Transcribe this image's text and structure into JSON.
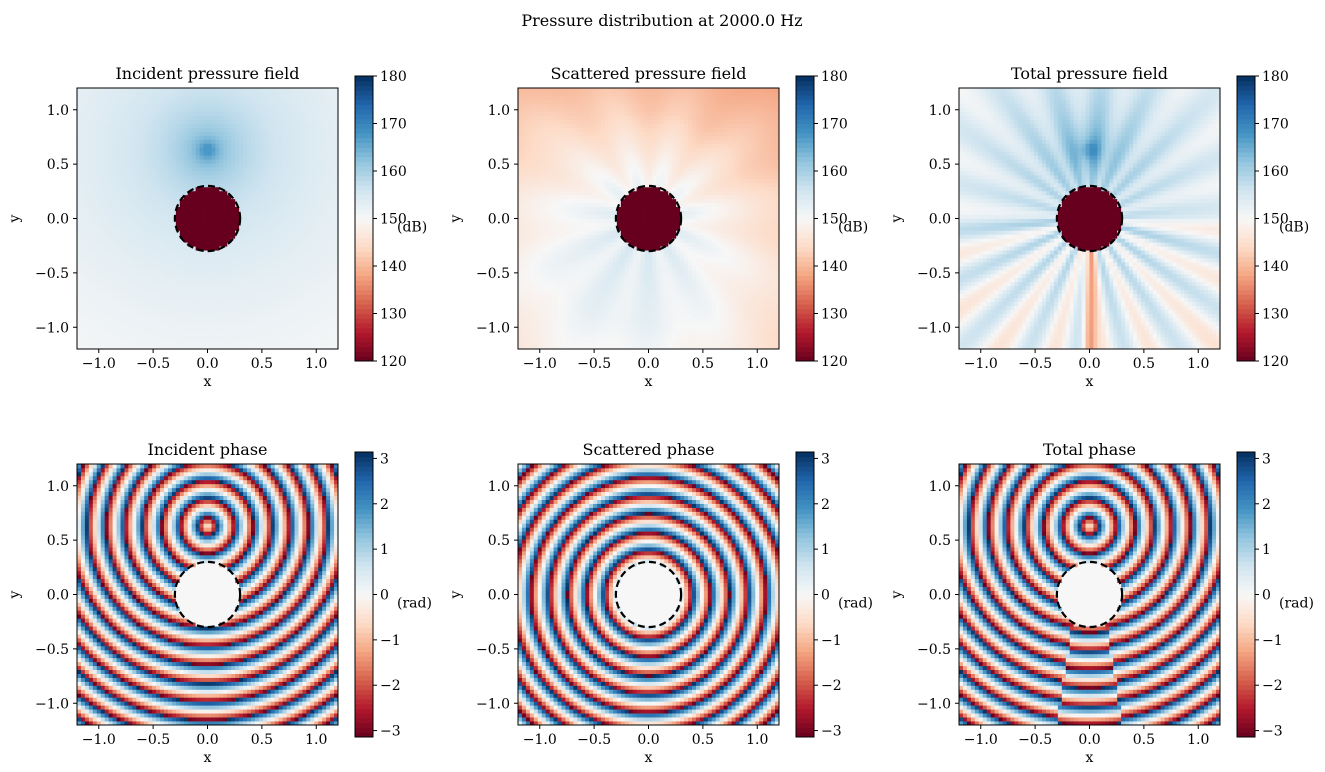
{
  "figure_title": "Pressure distribution at 2000.0 Hz",
  "colormap": {
    "name": "RdBu",
    "stops": [
      "#67001f",
      "#b2182b",
      "#d6604d",
      "#f4a582",
      "#fddbc7",
      "#f7f7f7",
      "#d1e5f0",
      "#92c5de",
      "#4393c3",
      "#2166ac",
      "#053061"
    ]
  },
  "chart_data": [
    {
      "type": "heatmap",
      "title": "Incident pressure field",
      "xlabel": "x",
      "ylabel": "y",
      "xlim": [
        -1.2,
        1.2
      ],
      "ylim": [
        -1.2,
        1.2
      ],
      "xticks": [
        "−1.0",
        "−0.5",
        "0.0",
        "0.5",
        "1.0"
      ],
      "yticks": [
        "−1.0",
        "−0.5",
        "0.0",
        "0.5",
        "1.0"
      ],
      "xtick_values": [
        -1.0,
        -0.5,
        0.0,
        0.5,
        1.0
      ],
      "ytick_values": [
        -1.0,
        -0.5,
        0.0,
        0.5,
        1.0
      ],
      "colorbar": {
        "min": 120,
        "max": 180,
        "ticks": [
          "120",
          "130",
          "140",
          "150",
          "160",
          "170",
          "180"
        ],
        "tick_values": [
          120,
          130,
          140,
          150,
          160,
          170,
          180
        ],
        "label": "(dB)"
      },
      "field": "magnitude",
      "component": "incident",
      "source_xy": [
        0.0,
        0.63
      ],
      "scatterer_center": [
        0.0,
        0.0
      ],
      "scatterer_radius": 0.3
    },
    {
      "type": "heatmap",
      "title": "Scattered pressure field",
      "xlabel": "x",
      "ylabel": "y",
      "xlim": [
        -1.2,
        1.2
      ],
      "ylim": [
        -1.2,
        1.2
      ],
      "xticks": [
        "−1.0",
        "−0.5",
        "0.0",
        "0.5",
        "1.0"
      ],
      "yticks": [
        "−1.0",
        "−0.5",
        "0.0",
        "0.5",
        "1.0"
      ],
      "xtick_values": [
        -1.0,
        -0.5,
        0.0,
        0.5,
        1.0
      ],
      "ytick_values": [
        -1.0,
        -0.5,
        0.0,
        0.5,
        1.0
      ],
      "colorbar": {
        "min": 120,
        "max": 180,
        "ticks": [
          "120",
          "130",
          "140",
          "150",
          "160",
          "170",
          "180"
        ],
        "tick_values": [
          120,
          130,
          140,
          150,
          160,
          170,
          180
        ],
        "label": "(dB)"
      },
      "field": "magnitude",
      "component": "scattered",
      "source_xy": [
        0.0,
        0.63
      ],
      "scatterer_center": [
        0.0,
        0.0
      ],
      "scatterer_radius": 0.3
    },
    {
      "type": "heatmap",
      "title": "Total pressure field",
      "xlabel": "x",
      "ylabel": "y",
      "xlim": [
        -1.2,
        1.2
      ],
      "ylim": [
        -1.2,
        1.2
      ],
      "xticks": [
        "−1.0",
        "−0.5",
        "0.0",
        "0.5",
        "1.0"
      ],
      "yticks": [
        "−1.0",
        "−0.5",
        "0.0",
        "0.5",
        "1.0"
      ],
      "xtick_values": [
        -1.0,
        -0.5,
        0.0,
        0.5,
        1.0
      ],
      "ytick_values": [
        -1.0,
        -0.5,
        0.0,
        0.5,
        1.0
      ],
      "colorbar": {
        "min": 120,
        "max": 180,
        "ticks": [
          "120",
          "130",
          "140",
          "150",
          "160",
          "170",
          "180"
        ],
        "tick_values": [
          120,
          130,
          140,
          150,
          160,
          170,
          180
        ],
        "label": "(dB)"
      },
      "field": "magnitude",
      "component": "total",
      "source_xy": [
        0.0,
        0.63
      ],
      "scatterer_center": [
        0.0,
        0.0
      ],
      "scatterer_radius": 0.3
    },
    {
      "type": "heatmap",
      "title": "Incident phase",
      "xlabel": "x",
      "ylabel": "y",
      "xlim": [
        -1.2,
        1.2
      ],
      "ylim": [
        -1.2,
        1.2
      ],
      "xticks": [
        "−1.0",
        "−0.5",
        "0.0",
        "0.5",
        "1.0"
      ],
      "yticks": [
        "−1.0",
        "−0.5",
        "0.0",
        "0.5",
        "1.0"
      ],
      "xtick_values": [
        -1.0,
        -0.5,
        0.0,
        0.5,
        1.0
      ],
      "ytick_values": [
        -1.0,
        -0.5,
        0.0,
        0.5,
        1.0
      ],
      "colorbar": {
        "min": -3.14159,
        "max": 3.14159,
        "ticks": [
          "−3",
          "−2",
          "−1",
          "0",
          "1",
          "2",
          "3"
        ],
        "tick_values": [
          -3,
          -2,
          -1,
          0,
          1,
          2,
          3
        ],
        "label": "(rad)"
      },
      "field": "phase",
      "component": "incident",
      "source_xy": [
        0.0,
        0.63
      ],
      "scatterer_center": [
        0.0,
        0.0
      ],
      "scatterer_radius": 0.3
    },
    {
      "type": "heatmap",
      "title": "Scattered phase",
      "xlabel": "x",
      "ylabel": "y",
      "xlim": [
        -1.2,
        1.2
      ],
      "ylim": [
        -1.2,
        1.2
      ],
      "xticks": [
        "−1.0",
        "−0.5",
        "0.0",
        "0.5",
        "1.0"
      ],
      "yticks": [
        "−1.0",
        "−0.5",
        "0.0",
        "0.5",
        "1.0"
      ],
      "xtick_values": [
        -1.0,
        -0.5,
        0.0,
        0.5,
        1.0
      ],
      "ytick_values": [
        -1.0,
        -0.5,
        0.0,
        0.5,
        1.0
      ],
      "colorbar": {
        "min": -3.14159,
        "max": 3.14159,
        "ticks": [
          "−3",
          "−2",
          "−1",
          "0",
          "1",
          "2",
          "3"
        ],
        "tick_values": [
          -3,
          -2,
          -1,
          0,
          1,
          2,
          3
        ],
        "label": "(rad)"
      },
      "field": "phase",
      "component": "scattered",
      "source_xy": [
        0.0,
        0.63
      ],
      "scatterer_center": [
        0.0,
        0.0
      ],
      "scatterer_radius": 0.3
    },
    {
      "type": "heatmap",
      "title": "Total phase",
      "xlabel": "x",
      "ylabel": "y",
      "xlim": [
        -1.2,
        1.2
      ],
      "ylim": [
        -1.2,
        1.2
      ],
      "xticks": [
        "−1.0",
        "−0.5",
        "0.0",
        "0.5",
        "1.0"
      ],
      "yticks": [
        "−1.0",
        "−0.5",
        "0.0",
        "0.5",
        "1.0"
      ],
      "xtick_values": [
        -1.0,
        -0.5,
        0.0,
        0.5,
        1.0
      ],
      "ytick_values": [
        -1.0,
        -0.5,
        0.0,
        0.5,
        1.0
      ],
      "colorbar": {
        "min": -3.14159,
        "max": 3.14159,
        "ticks": [
          "−3",
          "−2",
          "−1",
          "0",
          "1",
          "2",
          "3"
        ],
        "tick_values": [
          -3,
          -2,
          -1,
          0,
          1,
          2,
          3
        ],
        "label": "(rad)"
      },
      "field": "phase",
      "component": "total",
      "source_xy": [
        0.0,
        0.63
      ],
      "scatterer_center": [
        0.0,
        0.0
      ],
      "scatterer_radius": 0.3
    }
  ]
}
